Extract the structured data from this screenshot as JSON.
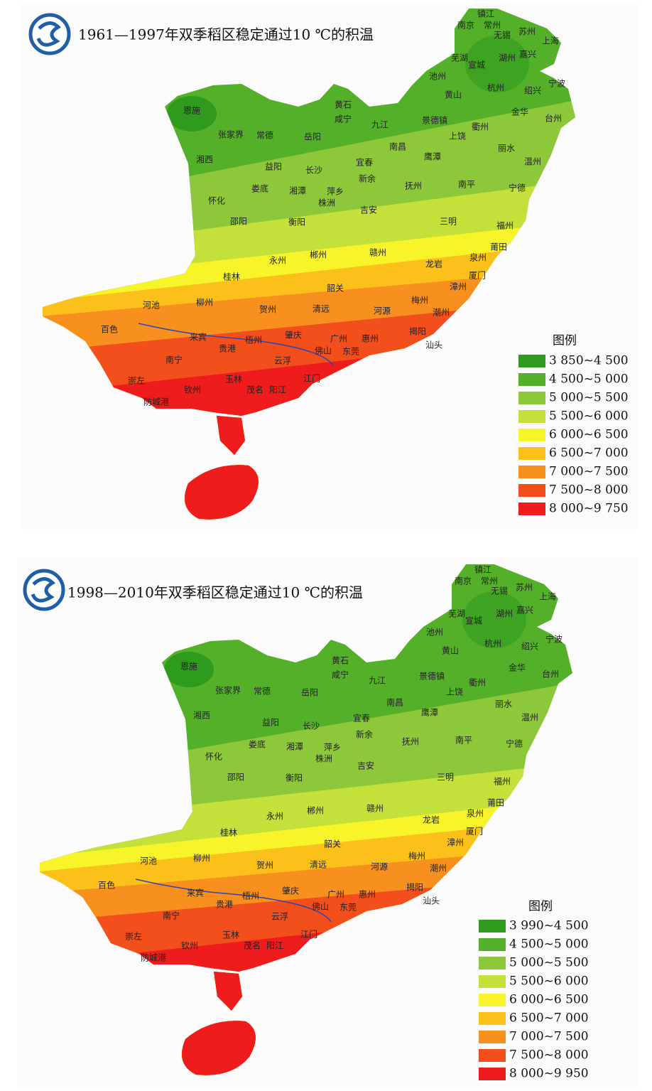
{
  "maps": [
    {
      "title": "1961—1997年双季稻区稳定通过10 ℃的积温",
      "legend_title": "图例",
      "legend": [
        {
          "label": "3 850~4 500",
          "color": "#2e9a1e"
        },
        {
          "label": "4 500~5 000",
          "color": "#55b029"
        },
        {
          "label": "5 000~5 500",
          "color": "#8cc83a"
        },
        {
          "label": "5 500~6 000",
          "color": "#c4e03a"
        },
        {
          "label": "6 000~6 500",
          "color": "#f7f52a"
        },
        {
          "label": "6 500~7 000",
          "color": "#fbc01a"
        },
        {
          "label": "7 000~7 500",
          "color": "#f7901e"
        },
        {
          "label": "7 500~8 000",
          "color": "#f24f1c"
        },
        {
          "label": "8 000~9 750",
          "color": "#ee1c1c"
        }
      ],
      "cities": [
        "镇江",
        "南京",
        "常州",
        "无锡",
        "苏州",
        "上海",
        "芜湖",
        "湖州",
        "嘉兴",
        "宣城",
        "池州",
        "杭州",
        "宁波",
        "黄山",
        "绍兴",
        "恩施",
        "黄石",
        "咸宁",
        "九江",
        "景德镇",
        "金华",
        "台州",
        "衢州",
        "张家界",
        "常德",
        "岳阳",
        "上饶",
        "南昌",
        "鹰潭",
        "丽水",
        "温州",
        "湘西",
        "益阳",
        "长沙",
        "宜春",
        "新余",
        "抚州",
        "南平",
        "宁德",
        "娄底",
        "湘潭",
        "萍乡",
        "株洲",
        "怀化",
        "吉安",
        "三明",
        "福州",
        "邵阳",
        "衡阳",
        "莆田",
        "郴州",
        "赣州",
        "泉州",
        "永州",
        "龙岩",
        "厦门",
        "桂林",
        "韶关",
        "漳州",
        "河池",
        "柳州",
        "贺州",
        "清远",
        "河源",
        "梅州",
        "潮州",
        "百色",
        "来宾",
        "梧州",
        "肇庆",
        "广州",
        "惠州",
        "揭阳",
        "汕头",
        "贵港",
        "佛山",
        "东莞",
        "南宁",
        "云浮",
        "崇左",
        "玉林",
        "江门",
        "钦州",
        "茂名",
        "阳江",
        "防城港"
      ]
    },
    {
      "title": "1998—2010年双季稻区稳定通过10 ℃的积温",
      "legend_title": "图例",
      "legend": [
        {
          "label": "3 990~4 500",
          "color": "#2e9a1e"
        },
        {
          "label": "4 500~5 000",
          "color": "#55b029"
        },
        {
          "label": "5 000~5 500",
          "color": "#8cc83a"
        },
        {
          "label": "5 500~6 000",
          "color": "#c4e03a"
        },
        {
          "label": "6 000~6 500",
          "color": "#f7f52a"
        },
        {
          "label": "6 500~7 000",
          "color": "#fbc01a"
        },
        {
          "label": "7 000~7 500",
          "color": "#f7901e"
        },
        {
          "label": "7 500~8 000",
          "color": "#f24f1c"
        },
        {
          "label": "8 000~9 950",
          "color": "#ee1c1c"
        }
      ],
      "cities": [
        "镇江",
        "南京",
        "常州",
        "无锡",
        "苏州",
        "上海",
        "芜湖",
        "湖州",
        "嘉兴",
        "宣城",
        "池州",
        "杭州",
        "宁波",
        "黄山",
        "绍兴",
        "恩施",
        "黄石",
        "咸宁",
        "九江",
        "景德镇",
        "金华",
        "台州",
        "衢州",
        "张家界",
        "常德",
        "岳阳",
        "上饶",
        "南昌",
        "鹰潭",
        "丽水",
        "温州",
        "湘西",
        "益阳",
        "长沙",
        "宜春",
        "新余",
        "抚州",
        "南平",
        "宁德",
        "娄底",
        "湘潭",
        "萍乡",
        "株洲",
        "怀化",
        "吉安",
        "三明",
        "福州",
        "邵阳",
        "衡阳",
        "莆田",
        "郴州",
        "赣州",
        "泉州",
        "永州",
        "龙岩",
        "厦门",
        "桂林",
        "韶关",
        "漳州",
        "河池",
        "柳州",
        "贺州",
        "清远",
        "河源",
        "梅州",
        "潮州",
        "百色",
        "来宾",
        "梧州",
        "肇庆",
        "广州",
        "惠州",
        "揭阳",
        "汕头",
        "贵港",
        "佛山",
        "东莞",
        "南宁",
        "云浮",
        "崇左",
        "玉林",
        "江门",
        "钦州",
        "茂名",
        "阳江",
        "防城港"
      ]
    }
  ]
}
